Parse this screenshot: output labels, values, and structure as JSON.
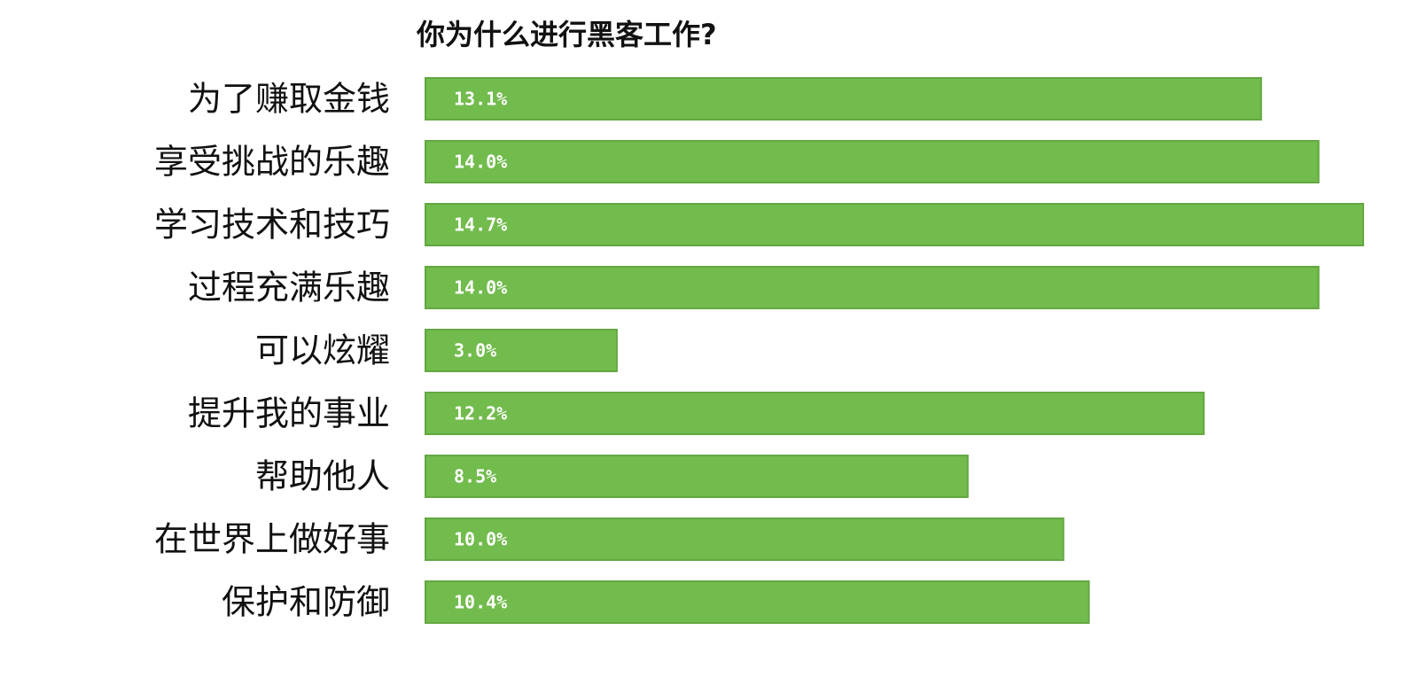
{
  "chart_data": {
    "type": "bar",
    "orientation": "horizontal",
    "title": "你为什么进行黑客工作?",
    "categories": [
      "为了赚取金钱",
      "享受挑战的乐趣",
      "学习技术和技巧",
      "过程充满乐趣",
      "可以炫耀",
      "提升我的事业",
      "帮助他人",
      "在世界上做好事",
      "保护和防御"
    ],
    "values": [
      13.1,
      14.0,
      14.7,
      14.0,
      3.0,
      12.2,
      8.5,
      10.0,
      10.4
    ],
    "data_labels": [
      "13.1%",
      "14.0%",
      "14.7%",
      "14.0%",
      "3.0%",
      "12.2%",
      "8.5%",
      "10.0%",
      "10.4%"
    ],
    "xlim": [
      0,
      14.7
    ],
    "grid": false,
    "legend": "none",
    "bar_color": "#72bb4d",
    "bar_edge_color": "#63a842"
  }
}
